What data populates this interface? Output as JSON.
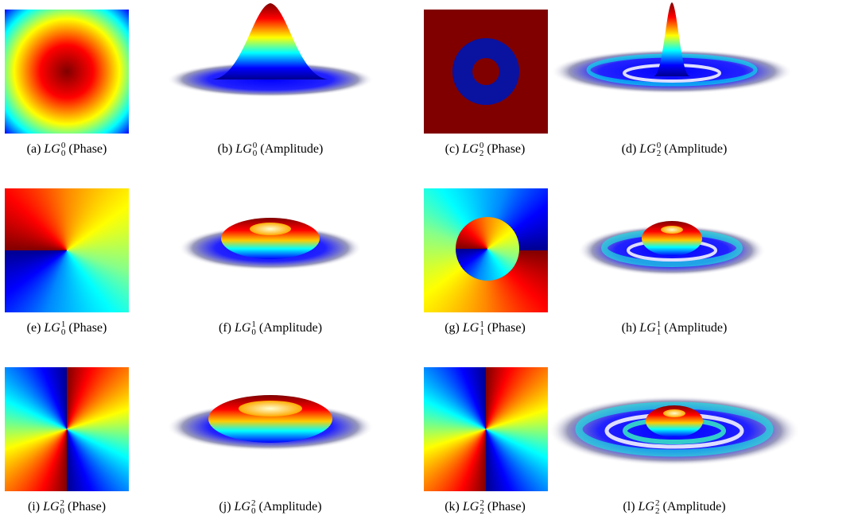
{
  "panels": [
    {
      "label": "(a)",
      "mode": "LG",
      "superscript": "0",
      "subscript": "0",
      "kind": "(Phase)"
    },
    {
      "label": "(b)",
      "mode": "LG",
      "superscript": "0",
      "subscript": "0",
      "kind": "(Amplitude)"
    },
    {
      "label": "(c)",
      "mode": "LG",
      "superscript": "0",
      "subscript": "2",
      "kind": "(Phase)"
    },
    {
      "label": "(d)",
      "mode": "LG",
      "superscript": "0",
      "subscript": "2",
      "kind": "(Amplitude)"
    },
    {
      "label": "(e)",
      "mode": "LG",
      "superscript": "1",
      "subscript": "0",
      "kind": "(Phase)"
    },
    {
      "label": "(f)",
      "mode": "LG",
      "superscript": "1",
      "subscript": "0",
      "kind": "(Amplitude)"
    },
    {
      "label": "(g)",
      "mode": "LG",
      "superscript": "1",
      "subscript": "1",
      "kind": "(Phase)"
    },
    {
      "label": "(h)",
      "mode": "LG",
      "superscript": "1",
      "subscript": "1",
      "kind": "(Amplitude)"
    },
    {
      "label": "(i)",
      "mode": "LG",
      "superscript": "2",
      "subscript": "0",
      "kind": "(Phase)"
    },
    {
      "label": "(j)",
      "mode": "LG",
      "superscript": "2",
      "subscript": "0",
      "kind": "(Amplitude)"
    },
    {
      "label": "(k)",
      "mode": "LG",
      "superscript": "2",
      "subscript": "2",
      "kind": "(Phase)"
    },
    {
      "label": "(l)",
      "mode": "LG",
      "superscript": "2",
      "subscript": "2",
      "kind": "(Amplitude)"
    }
  ]
}
